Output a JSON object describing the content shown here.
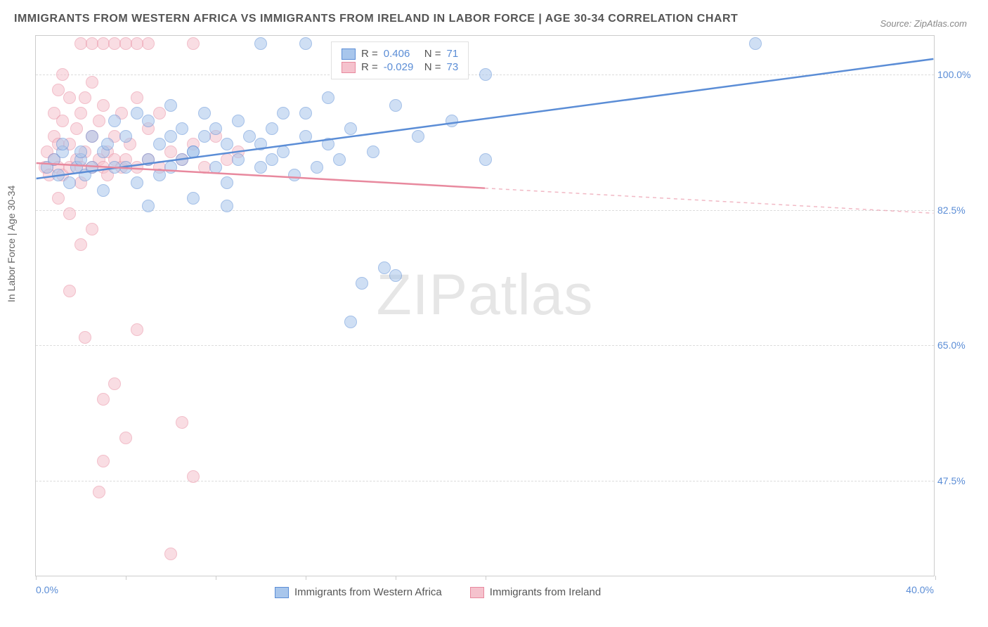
{
  "title": "IMMIGRANTS FROM WESTERN AFRICA VS IMMIGRANTS FROM IRELAND IN LABOR FORCE | AGE 30-34 CORRELATION CHART",
  "source": "Source: ZipAtlas.com",
  "ylabel": "In Labor Force | Age 30-34",
  "watermark_a": "ZIP",
  "watermark_b": "atlas",
  "chart": {
    "type": "scatter",
    "x_domain": [
      0,
      40
    ],
    "y_domain": [
      35,
      105
    ],
    "y_ticks": [
      47.5,
      65.0,
      82.5,
      100.0
    ],
    "y_tick_labels": [
      "47.5%",
      "65.0%",
      "82.5%",
      "100.0%"
    ],
    "x_ticks": [
      0,
      4,
      8,
      12,
      16,
      20,
      40
    ],
    "x_axis_left_label": "0.0%",
    "x_axis_right_label": "40.0%",
    "background_color": "#ffffff",
    "grid_color": "#dddddd",
    "axis_color": "#cccccc",
    "title_fontsize": 16,
    "label_fontsize": 14,
    "tick_color": "#5b8dd6",
    "series_a": {
      "name": "Immigrants from Western Africa",
      "color_fill": "#a8c6ec",
      "color_stroke": "#5b8dd6",
      "r_label": "R =",
      "r_value": "0.406",
      "n_label": "N =",
      "n_value": "71",
      "trend": {
        "x1": 0,
        "y1": 86.5,
        "x2": 40,
        "y2": 102,
        "dash_from_x": 40
      },
      "points": [
        [
          0.5,
          88
        ],
        [
          0.8,
          89
        ],
        [
          1.0,
          87
        ],
        [
          1.2,
          90
        ],
        [
          1.2,
          91
        ],
        [
          1.5,
          86
        ],
        [
          1.8,
          88
        ],
        [
          2.0,
          89
        ],
        [
          2.0,
          90
        ],
        [
          2.2,
          87
        ],
        [
          2.5,
          92
        ],
        [
          2.5,
          88
        ],
        [
          3.0,
          85
        ],
        [
          3.0,
          90
        ],
        [
          3.2,
          91
        ],
        [
          3.5,
          88
        ],
        [
          3.5,
          94
        ],
        [
          4.0,
          92
        ],
        [
          4.0,
          88
        ],
        [
          4.5,
          86
        ],
        [
          4.5,
          95
        ],
        [
          5.0,
          89
        ],
        [
          5.0,
          94
        ],
        [
          5.0,
          83
        ],
        [
          5.5,
          91
        ],
        [
          5.5,
          87
        ],
        [
          6.0,
          92
        ],
        [
          6.0,
          88
        ],
        [
          6.0,
          96
        ],
        [
          6.5,
          89
        ],
        [
          6.5,
          93
        ],
        [
          7.0,
          90
        ],
        [
          7.0,
          84
        ],
        [
          7.0,
          90
        ],
        [
          7.5,
          92
        ],
        [
          7.5,
          95
        ],
        [
          8.0,
          88
        ],
        [
          8.0,
          93
        ],
        [
          8.5,
          86
        ],
        [
          8.5,
          91
        ],
        [
          8.5,
          83
        ],
        [
          9.0,
          89
        ],
        [
          9.0,
          94
        ],
        [
          9.5,
          92
        ],
        [
          10.0,
          104
        ],
        [
          10.0,
          88
        ],
        [
          10.0,
          91
        ],
        [
          10.5,
          93
        ],
        [
          10.5,
          89
        ],
        [
          11.0,
          95
        ],
        [
          11.0,
          90
        ],
        [
          11.5,
          87
        ],
        [
          12.0,
          92
        ],
        [
          12.0,
          95
        ],
        [
          12.0,
          104
        ],
        [
          12.5,
          88
        ],
        [
          13.0,
          91
        ],
        [
          13.0,
          97
        ],
        [
          13.5,
          89
        ],
        [
          14.0,
          93
        ],
        [
          14.5,
          73
        ],
        [
          15.0,
          90
        ],
        [
          15.5,
          75
        ],
        [
          16.0,
          74
        ],
        [
          16.0,
          96
        ],
        [
          17.0,
          92
        ],
        [
          18.5,
          94
        ],
        [
          20.0,
          89
        ],
        [
          20.0,
          100
        ],
        [
          32.0,
          104
        ],
        [
          14.0,
          68
        ]
      ]
    },
    "series_b": {
      "name": "Immigrants from Ireland",
      "color_fill": "#f5c2cd",
      "color_stroke": "#e8899e",
      "r_label": "R =",
      "r_value": "-0.029",
      "n_label": "N =",
      "n_value": "73",
      "trend": {
        "x1": 0,
        "y1": 88.5,
        "x2": 40,
        "y2": 82,
        "dash_from_x": 20
      },
      "points": [
        [
          0.4,
          88
        ],
        [
          0.5,
          90
        ],
        [
          0.6,
          87
        ],
        [
          0.8,
          89
        ],
        [
          0.8,
          92
        ],
        [
          0.8,
          95
        ],
        [
          1.0,
          88
        ],
        [
          1.0,
          91
        ],
        [
          1.0,
          98
        ],
        [
          1.2,
          87
        ],
        [
          1.2,
          94
        ],
        [
          1.2,
          100
        ],
        [
          1.5,
          88
        ],
        [
          1.5,
          91
        ],
        [
          1.5,
          97
        ],
        [
          1.5,
          82
        ],
        [
          1.8,
          89
        ],
        [
          1.8,
          93
        ],
        [
          2.0,
          88
        ],
        [
          2.0,
          95
        ],
        [
          2.0,
          86
        ],
        [
          2.0,
          104
        ],
        [
          2.2,
          90
        ],
        [
          2.2,
          97
        ],
        [
          2.2,
          66
        ],
        [
          2.5,
          88
        ],
        [
          2.5,
          92
        ],
        [
          2.5,
          99
        ],
        [
          2.5,
          104
        ],
        [
          2.5,
          80
        ],
        [
          2.8,
          89
        ],
        [
          2.8,
          94
        ],
        [
          2.8,
          46
        ],
        [
          3.0,
          88
        ],
        [
          3.0,
          50
        ],
        [
          3.0,
          96
        ],
        [
          3.0,
          104
        ],
        [
          3.0,
          58
        ],
        [
          3.2,
          90
        ],
        [
          3.2,
          87
        ],
        [
          3.5,
          89
        ],
        [
          3.5,
          92
        ],
        [
          3.5,
          60
        ],
        [
          3.5,
          104
        ],
        [
          3.8,
          88
        ],
        [
          3.8,
          95
        ],
        [
          4.0,
          53
        ],
        [
          4.0,
          104
        ],
        [
          4.0,
          89
        ],
        [
          4.2,
          91
        ],
        [
          4.5,
          88
        ],
        [
          4.5,
          97
        ],
        [
          4.5,
          67
        ],
        [
          5.0,
          89
        ],
        [
          5.0,
          93
        ],
        [
          5.0,
          104
        ],
        [
          5.5,
          88
        ],
        [
          5.5,
          95
        ],
        [
          6.0,
          90
        ],
        [
          6.0,
          38
        ],
        [
          6.5,
          89
        ],
        [
          6.5,
          55
        ],
        [
          7.0,
          91
        ],
        [
          7.0,
          104
        ],
        [
          7.0,
          48
        ],
        [
          7.5,
          88
        ],
        [
          8.0,
          92
        ],
        [
          8.5,
          89
        ],
        [
          9.0,
          90
        ],
        [
          4.5,
          104
        ],
        [
          2.0,
          78
        ],
        [
          1.5,
          72
        ],
        [
          1.0,
          84
        ]
      ]
    }
  }
}
